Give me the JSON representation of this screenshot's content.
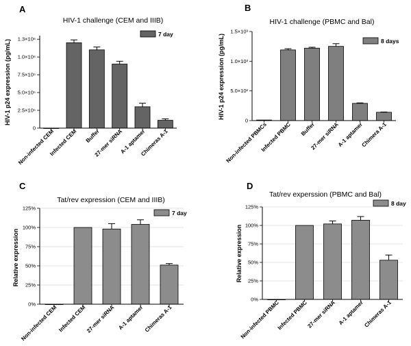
{
  "chart_data": [
    {
      "panel": "A",
      "type": "bar",
      "title": "HIV-1 challenge (CEM and IIIB)",
      "ylabel": "HIV-1 p24 expression (pg/mL)",
      "xlabel": "",
      "categories": [
        "Non-infected CEM",
        "Infected CEM",
        "Buffer",
        "27-mer siRNA",
        "A-1 aptamer",
        "Chimeras A-1"
      ],
      "series": [
        {
          "name": "7 day",
          "values": [
            0,
            1200000.0,
            1100000.0,
            900000.0,
            300000.0,
            110000.0
          ],
          "errors": [
            0,
            40000.0,
            40000.0,
            40000.0,
            50000.0,
            20000.0
          ]
        }
      ],
      "ylim": [
        0,
        1300000
      ],
      "yticks": [
        0,
        250000,
        500000,
        750000,
        1000000,
        1250000
      ],
      "ytick_labels": [
        "0",
        "2.5×10⁵",
        "5.0×10⁵",
        "7.5×10⁵",
        "1.0×10⁶",
        "1.3×10⁶"
      ],
      "legend_position": "top-right",
      "bar_color": "#646464",
      "grid": false
    },
    {
      "panel": "B",
      "type": "bar",
      "title": "HIV-1 challenge (PBMC and Bal)",
      "ylabel": "HIV-1 p24 expression (pg/mL)",
      "xlabel": "",
      "categories": [
        "Non-infected PBMCs",
        "Infected PBMC",
        "Buffer",
        "27-mer siRNA",
        "A-1 aptamer",
        "Chimera A-1"
      ],
      "series": [
        {
          "name": "8 days",
          "values": [
            10,
            1190,
            1220,
            1250,
            290,
            140
          ],
          "errors": [
            0,
            20,
            15,
            45,
            8,
            5
          ]
        }
      ],
      "ylim": [
        0,
        1500
      ],
      "yticks": [
        0,
        500,
        1000,
        1500
      ],
      "ytick_labels": [
        "0",
        "5.0×10²",
        "1.0×10³",
        "1.5×10³"
      ],
      "legend_position": "top-right",
      "bar_color": "#7f7f7f",
      "grid": false
    },
    {
      "panel": "C",
      "type": "bar",
      "title": "Tat/rev expression (CEM and IIIB)",
      "ylabel": "Relative expression",
      "xlabel": "",
      "categories": [
        "Non-infected CEM",
        "Infected CEM",
        "27-mer siRNA",
        "A-1 aptamer",
        "Chimeras A-1"
      ],
      "series": [
        {
          "name": "7 day",
          "values": [
            0,
            100,
            98,
            104,
            51
          ],
          "errors": [
            0,
            0,
            7,
            6,
            2
          ]
        }
      ],
      "ylim": [
        0,
        125
      ],
      "yticks": [
        0,
        25,
        50,
        75,
        100,
        125
      ],
      "ytick_labels": [
        "0%",
        "25%",
        "50%",
        "75%",
        "100%",
        "125%"
      ],
      "legend_position": "top-right",
      "bar_color": "#8c8c8c",
      "grid": true
    },
    {
      "panel": "D",
      "type": "bar",
      "title": "Tat/rev experssion (PBMC and Bal)",
      "ylabel": "Relative expression",
      "xlabel": "",
      "categories": [
        "Non-infected PBMC",
        "Infected PBMC",
        "27-mer siRNA",
        "A-1 aptamer",
        "Chimeras A-1"
      ],
      "series": [
        {
          "name": "8 day",
          "values": [
            0,
            100,
            102,
            107,
            53
          ],
          "errors": [
            0,
            0,
            4,
            5,
            7
          ]
        }
      ],
      "ylim": [
        0,
        125
      ],
      "yticks": [
        0,
        25,
        50,
        75,
        100,
        125
      ],
      "ytick_labels": [
        "0%",
        "25%",
        "50%",
        "75%",
        "100%",
        "125%"
      ],
      "legend_position": "top-right",
      "bar_color": "#8c8c8c",
      "grid": true
    }
  ]
}
